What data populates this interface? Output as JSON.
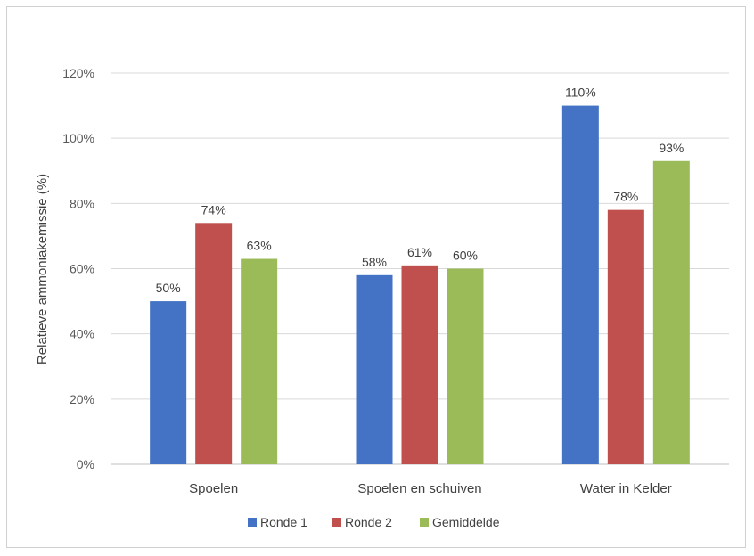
{
  "chart_data": {
    "type": "bar",
    "ylabel": "Relatieve ammoniakemissie (%)",
    "xlabel": "",
    "ylim": [
      0,
      120
    ],
    "yticks": [
      0,
      20,
      40,
      60,
      80,
      100,
      120
    ],
    "ytick_labels": [
      "0%",
      "20%",
      "40%",
      "60%",
      "80%",
      "100%",
      "120%"
    ],
    "categories": [
      "Spoelen",
      "Spoelen en schuiven",
      "Water in Kelder"
    ],
    "series": [
      {
        "name": "Ronde 1",
        "color": "#4472C4",
        "values": [
          50,
          58,
          110
        ],
        "labels": [
          "50%",
          "58%",
          "110%"
        ]
      },
      {
        "name": "Ronde 2",
        "color": "#C0504D",
        "values": [
          74,
          61,
          78
        ],
        "labels": [
          "74%",
          "61%",
          "78%"
        ]
      },
      {
        "name": "Gemiddelde",
        "color": "#9BBB59",
        "values": [
          63,
          60,
          93
        ],
        "labels": [
          "63%",
          "60%",
          "93%"
        ]
      }
    ],
    "grid": true,
    "legend": "bottom"
  }
}
